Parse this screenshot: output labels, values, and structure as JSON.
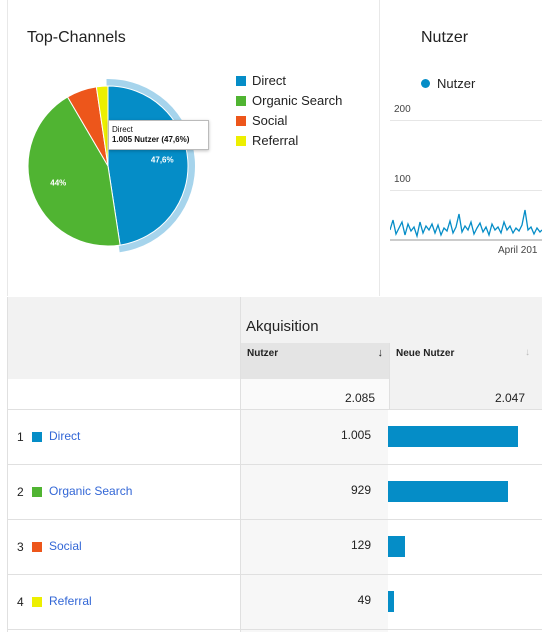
{
  "channels_card": {
    "title": "Top-Channels",
    "legend": [
      {
        "label": "Direct",
        "color": "#058dc7"
      },
      {
        "label": "Organic Search",
        "color": "#50b432"
      },
      {
        "label": "Social",
        "color": "#ed561b"
      },
      {
        "label": "Referral",
        "color": "#edef00"
      }
    ],
    "tooltip": {
      "line1": "Direct",
      "line2": "1.005 Nutzer (47,6%)"
    },
    "pie_labels": {
      "direct": "47,6%",
      "organic": "44%"
    }
  },
  "users_card": {
    "title": "Nutzer",
    "legend_label": "Nutzer",
    "y_ticks": [
      "200",
      "100"
    ],
    "x_label": "April 201"
  },
  "chart_data": {
    "type": "pie",
    "categories": [
      "Direct",
      "Organic Search",
      "Social",
      "Referral"
    ],
    "values": [
      1005,
      929,
      129,
      49
    ],
    "percent_labels": [
      "47,6%",
      "44%",
      "",
      ""
    ],
    "colors": [
      "#058dc7",
      "#50b432",
      "#ed561b",
      "#edef00"
    ]
  },
  "table": {
    "group_header": "Akquisition",
    "columns": [
      "Nutzer",
      "Neue Nutzer"
    ],
    "sort_indicator": "↓",
    "totals": {
      "nutzer": "2.085",
      "neue_nutzer": "2.047"
    },
    "rows": [
      {
        "num": "1",
        "label": "Direct",
        "nutzer": "1.005",
        "color": "#058dc7",
        "share": 0.491
      },
      {
        "num": "2",
        "label": "Organic Search",
        "nutzer": "929",
        "color": "#50b432",
        "share": 0.454
      },
      {
        "num": "3",
        "label": "Social",
        "nutzer": "129",
        "color": "#ed561b",
        "share": 0.063
      },
      {
        "num": "4",
        "label": "Referral",
        "nutzer": "49",
        "color": "#edef00",
        "share": 0.024
      }
    ]
  }
}
